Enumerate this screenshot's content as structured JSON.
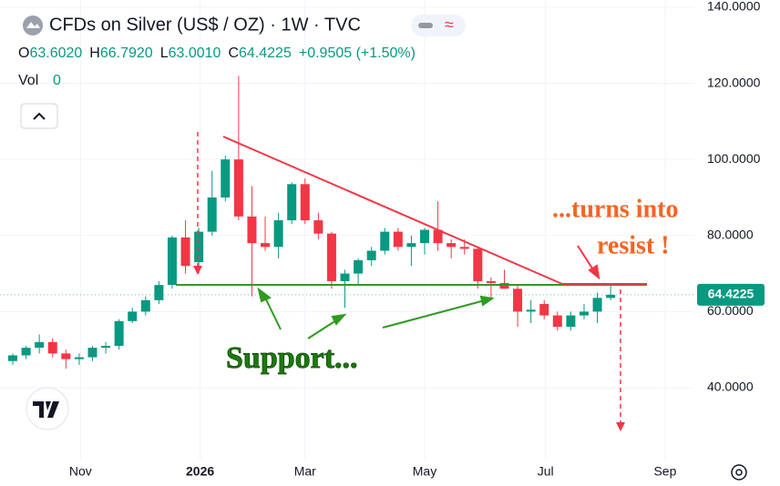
{
  "chart_data": {
    "type": "candlestick",
    "title": "CFDs on Silver (US$ / OZ) · 1W · TVC",
    "ohlc_legend": [
      {
        "key": "O",
        "value": "63.6020"
      },
      {
        "key": "H",
        "value": "66.7920"
      },
      {
        "key": "L",
        "value": "63.0010"
      },
      {
        "key": "C",
        "value": "64.4225"
      }
    ],
    "change": "+0.9505 (+1.50%)",
    "volume_label": "Vol",
    "volume": "0",
    "up_color": "#089981",
    "down_color": "#f23645",
    "open": [
      47,
      48.5,
      50.5,
      52,
      49,
      47.5,
      48,
      50.5,
      51,
      57.5,
      60,
      63,
      67,
      79.5,
      73,
      81,
      90,
      100,
      85,
      78,
      77,
      84,
      93.5,
      84,
      80.5,
      68,
      70,
      73.5,
      76,
      81,
      77,
      78,
      81.5,
      78,
      77,
      76.5,
      68,
      67.5,
      66,
      60,
      62,
      59,
      56,
      59,
      60,
      63.602
    ],
    "high": [
      49,
      51,
      54,
      53,
      50,
      49,
      51,
      52,
      58,
      61,
      64,
      68,
      80,
      84,
      82,
      97,
      101,
      122,
      93,
      85,
      86,
      94,
      95,
      86,
      81,
      71,
      74,
      77,
      82,
      82,
      80,
      82,
      89,
      79,
      79,
      77,
      69,
      71,
      67,
      63,
      63,
      60,
      60,
      62,
      65,
      66.792
    ],
    "low": [
      46,
      47.5,
      49,
      48,
      45,
      46,
      47,
      49,
      50,
      57,
      59,
      62,
      66,
      70,
      70,
      80,
      89,
      84,
      64,
      76,
      74,
      83,
      83,
      79,
      66,
      61,
      67,
      72,
      75,
      76,
      72,
      75,
      76,
      74,
      75,
      66,
      63,
      66,
      56,
      57,
      58,
      55,
      55,
      58,
      57,
      63.001
    ],
    "close": [
      48.5,
      50.5,
      52,
      49,
      47.5,
      48,
      50.5,
      51,
      57.5,
      60,
      63,
      67,
      79.5,
      72,
      81,
      90,
      100,
      85,
      78,
      77,
      84,
      93.5,
      84,
      80.5,
      68,
      70,
      73.5,
      76,
      81,
      77,
      78,
      81.5,
      78,
      77,
      76.5,
      68,
      67.5,
      66,
      60,
      60.5,
      59,
      56,
      59,
      60,
      63.6,
      64.4225
    ],
    "xlim": [
      -0.96,
      51.3
    ],
    "xticks": [
      {
        "value": 5.1,
        "label": "Nov"
      },
      {
        "value": 14.1,
        "label": "2026"
      },
      {
        "value": 22,
        "label": "Mar"
      },
      {
        "value": 31,
        "label": "May"
      },
      {
        "value": 40.1,
        "label": "Jul"
      },
      {
        "value": 49.1,
        "label": "Sep"
      }
    ],
    "ylim": [
      21.1,
      141.9
    ],
    "yticks": [
      {
        "value": 40,
        "label": "40.0000"
      },
      {
        "value": 60,
        "label": "60.0000"
      },
      {
        "value": 80,
        "label": "80.0000"
      },
      {
        "value": 100,
        "label": "100.0000"
      },
      {
        "value": 120,
        "label": "120.0000"
      },
      {
        "value": 140,
        "label": "140.0000"
      }
    ],
    "grid": true,
    "annotations": {
      "support": "Support...",
      "resist_line1": "...turns into",
      "resist_line2": "resist !"
    }
  }
}
